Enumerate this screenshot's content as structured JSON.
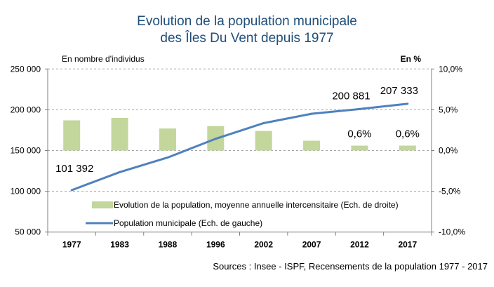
{
  "chart_data": {
    "type": "bar+line",
    "title_line1": "Evolution de la population municipale",
    "title_line2": "des Îles Du Vent depuis 1977",
    "ylabel_left": "En nombre d'individus",
    "ylabel_right": "En %",
    "source": "Sources : Insee - ISPF, Recensements de la population 1977 - 2017",
    "categories": [
      "1977",
      "1983",
      "1988",
      "1996",
      "2002",
      "2007",
      "2012",
      "2017"
    ],
    "left_axis": {
      "ylim": [
        50000,
        250000
      ],
      "ticks": [
        "50 000",
        "100 000",
        "150 000",
        "200 000",
        "250 000"
      ]
    },
    "right_axis": {
      "ylim": [
        -10,
        10
      ],
      "ticks": [
        "-10,0%",
        "-5,0%",
        "0,0%",
        "5,0%",
        "10,0%"
      ]
    },
    "grid": true,
    "legend_placement": "bottom-center inside",
    "series": [
      {
        "name": "Evolution de la population, moyenne annuelle intercensitaire (Ech. de droite)",
        "type": "bar",
        "axis": "right",
        "color": "#c3d69b",
        "values": [
          3.7,
          4.0,
          2.7,
          3.0,
          2.4,
          1.2,
          0.6,
          0.6
        ],
        "labels": [
          "",
          "",
          "",
          "",
          "",
          "",
          "0,6%",
          "0,6%"
        ]
      },
      {
        "name": "Population municipale  (Ech. de gauche)",
        "type": "line",
        "axis": "left",
        "color": "#4f81bd",
        "values": [
          101392,
          123500,
          141400,
          164400,
          183600,
          195100,
          200881,
          207333
        ],
        "labels": [
          "101 392",
          "",
          "",
          "",
          "",
          "",
          "200 881",
          "207 333"
        ]
      }
    ]
  }
}
